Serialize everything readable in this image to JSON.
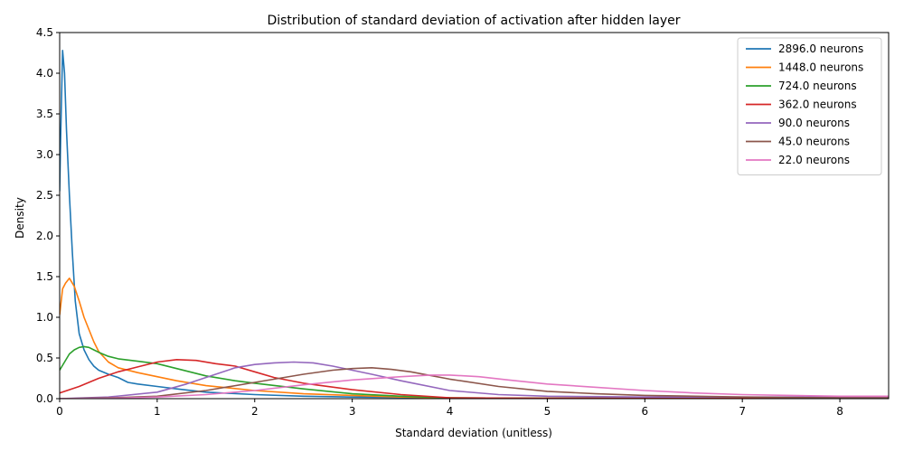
{
  "chart_data": {
    "type": "line",
    "title": "Distribution of standard deviation of activation after hidden layer",
    "xlabel": "Standard deviation (unitless)",
    "ylabel": "Density",
    "xlim": [
      0,
      8.5
    ],
    "ylim": [
      0,
      4.5
    ],
    "xticks": [
      0,
      1,
      2,
      3,
      4,
      5,
      6,
      7,
      8
    ],
    "yticks": [
      0.0,
      0.5,
      1.0,
      1.5,
      2.0,
      2.5,
      3.0,
      3.5,
      4.0,
      4.5
    ],
    "xtick_labels": [
      "0",
      "1",
      "2",
      "3",
      "4",
      "5",
      "6",
      "7",
      "8"
    ],
    "ytick_labels": [
      "0.0",
      "0.5",
      "1.0",
      "1.5",
      "2.0",
      "2.5",
      "3.0",
      "3.5",
      "4.0",
      "4.5"
    ],
    "grid": false,
    "legend_position": "top-right",
    "series": [
      {
        "name": "2896.0 neurons",
        "color": "#1f77b4",
        "x": [
          0,
          0.01,
          0.03,
          0.05,
          0.07,
          0.1,
          0.13,
          0.16,
          0.2,
          0.25,
          0.3,
          0.35,
          0.4,
          0.5,
          0.6,
          0.7,
          0.8,
          1.0,
          1.2,
          1.5,
          2.0,
          2.5,
          3.0,
          4.0,
          5.0,
          6.0,
          7.0,
          8.0,
          8.5
        ],
        "y": [
          2.55,
          3.2,
          4.28,
          4.0,
          3.3,
          2.5,
          1.8,
          1.2,
          0.8,
          0.6,
          0.48,
          0.4,
          0.35,
          0.3,
          0.26,
          0.2,
          0.18,
          0.15,
          0.12,
          0.08,
          0.05,
          0.03,
          0.02,
          0.01,
          0.005,
          0.003,
          0.002,
          0.001,
          0.001
        ]
      },
      {
        "name": "1448.0 neurons",
        "color": "#ff7f0e",
        "x": [
          0,
          0.03,
          0.06,
          0.1,
          0.15,
          0.2,
          0.25,
          0.3,
          0.35,
          0.4,
          0.5,
          0.6,
          0.8,
          1.0,
          1.2,
          1.5,
          2.0,
          2.5,
          3.0,
          3.5,
          4.0,
          5.0,
          6.0,
          7.0,
          8.0,
          8.5
        ],
        "y": [
          1.03,
          1.35,
          1.42,
          1.48,
          1.38,
          1.2,
          1.0,
          0.85,
          0.7,
          0.58,
          0.45,
          0.38,
          0.32,
          0.27,
          0.22,
          0.16,
          0.1,
          0.06,
          0.04,
          0.02,
          0.01,
          0.005,
          0.003,
          0.002,
          0.001,
          0.001
        ]
      },
      {
        "name": "724.0 neurons",
        "color": "#2ca02c",
        "x": [
          0,
          0.05,
          0.1,
          0.15,
          0.2,
          0.25,
          0.3,
          0.35,
          0.4,
          0.5,
          0.6,
          0.8,
          1.0,
          1.2,
          1.5,
          1.8,
          2.0,
          2.5,
          3.0,
          3.5,
          4.0,
          5.0,
          6.0,
          7.0,
          8.0,
          8.5
        ],
        "y": [
          0.35,
          0.45,
          0.55,
          0.6,
          0.63,
          0.64,
          0.63,
          0.6,
          0.57,
          0.52,
          0.49,
          0.46,
          0.43,
          0.37,
          0.28,
          0.22,
          0.19,
          0.12,
          0.06,
          0.03,
          0.01,
          0.005,
          0.003,
          0.002,
          0.001,
          0.001
        ]
      },
      {
        "name": "362.0 neurons",
        "color": "#d62728",
        "x": [
          0,
          0.2,
          0.4,
          0.6,
          0.8,
          1.0,
          1.2,
          1.4,
          1.6,
          1.8,
          2.0,
          2.2,
          2.5,
          3.0,
          3.5,
          4.0,
          5.0,
          6.0,
          7.0,
          8.0,
          8.5
        ],
        "y": [
          0.07,
          0.15,
          0.25,
          0.33,
          0.39,
          0.45,
          0.48,
          0.47,
          0.43,
          0.4,
          0.33,
          0.26,
          0.19,
          0.11,
          0.05,
          0.01,
          0.005,
          0.003,
          0.002,
          0.001,
          0.001
        ]
      },
      {
        "name": "90.0 neurons",
        "color": "#9467bd",
        "x": [
          0,
          0.5,
          1.0,
          1.3,
          1.6,
          1.8,
          2.0,
          2.2,
          2.4,
          2.6,
          2.8,
          3.0,
          3.2,
          3.5,
          4.0,
          4.5,
          5.0,
          6.0,
          7.0,
          8.0,
          8.5
        ],
        "y": [
          0.0,
          0.02,
          0.08,
          0.18,
          0.3,
          0.38,
          0.42,
          0.44,
          0.45,
          0.44,
          0.4,
          0.35,
          0.3,
          0.22,
          0.1,
          0.05,
          0.03,
          0.02,
          0.02,
          0.02,
          0.02
        ]
      },
      {
        "name": "45.0 neurons",
        "color": "#8c564b",
        "x": [
          0,
          0.5,
          1.0,
          1.5,
          2.0,
          2.5,
          2.8,
          3.0,
          3.2,
          3.4,
          3.6,
          4.0,
          4.5,
          5.0,
          5.5,
          6.0,
          7.0,
          8.0,
          8.5
        ],
        "y": [
          0.0,
          0.01,
          0.03,
          0.1,
          0.2,
          0.3,
          0.35,
          0.37,
          0.38,
          0.36,
          0.33,
          0.24,
          0.15,
          0.09,
          0.06,
          0.04,
          0.02,
          0.01,
          0.01
        ]
      },
      {
        "name": "22.0 neurons",
        "color": "#e377c2",
        "x": [
          0,
          0.5,
          1.0,
          1.5,
          2.0,
          2.5,
          3.0,
          3.5,
          3.8,
          4.0,
          4.3,
          4.6,
          5.0,
          5.5,
          6.0,
          6.5,
          7.0,
          7.5,
          8.0,
          8.5
        ],
        "y": [
          0.0,
          0.005,
          0.02,
          0.05,
          0.1,
          0.17,
          0.23,
          0.27,
          0.29,
          0.29,
          0.27,
          0.23,
          0.18,
          0.14,
          0.1,
          0.07,
          0.05,
          0.04,
          0.03,
          0.03
        ]
      }
    ]
  }
}
